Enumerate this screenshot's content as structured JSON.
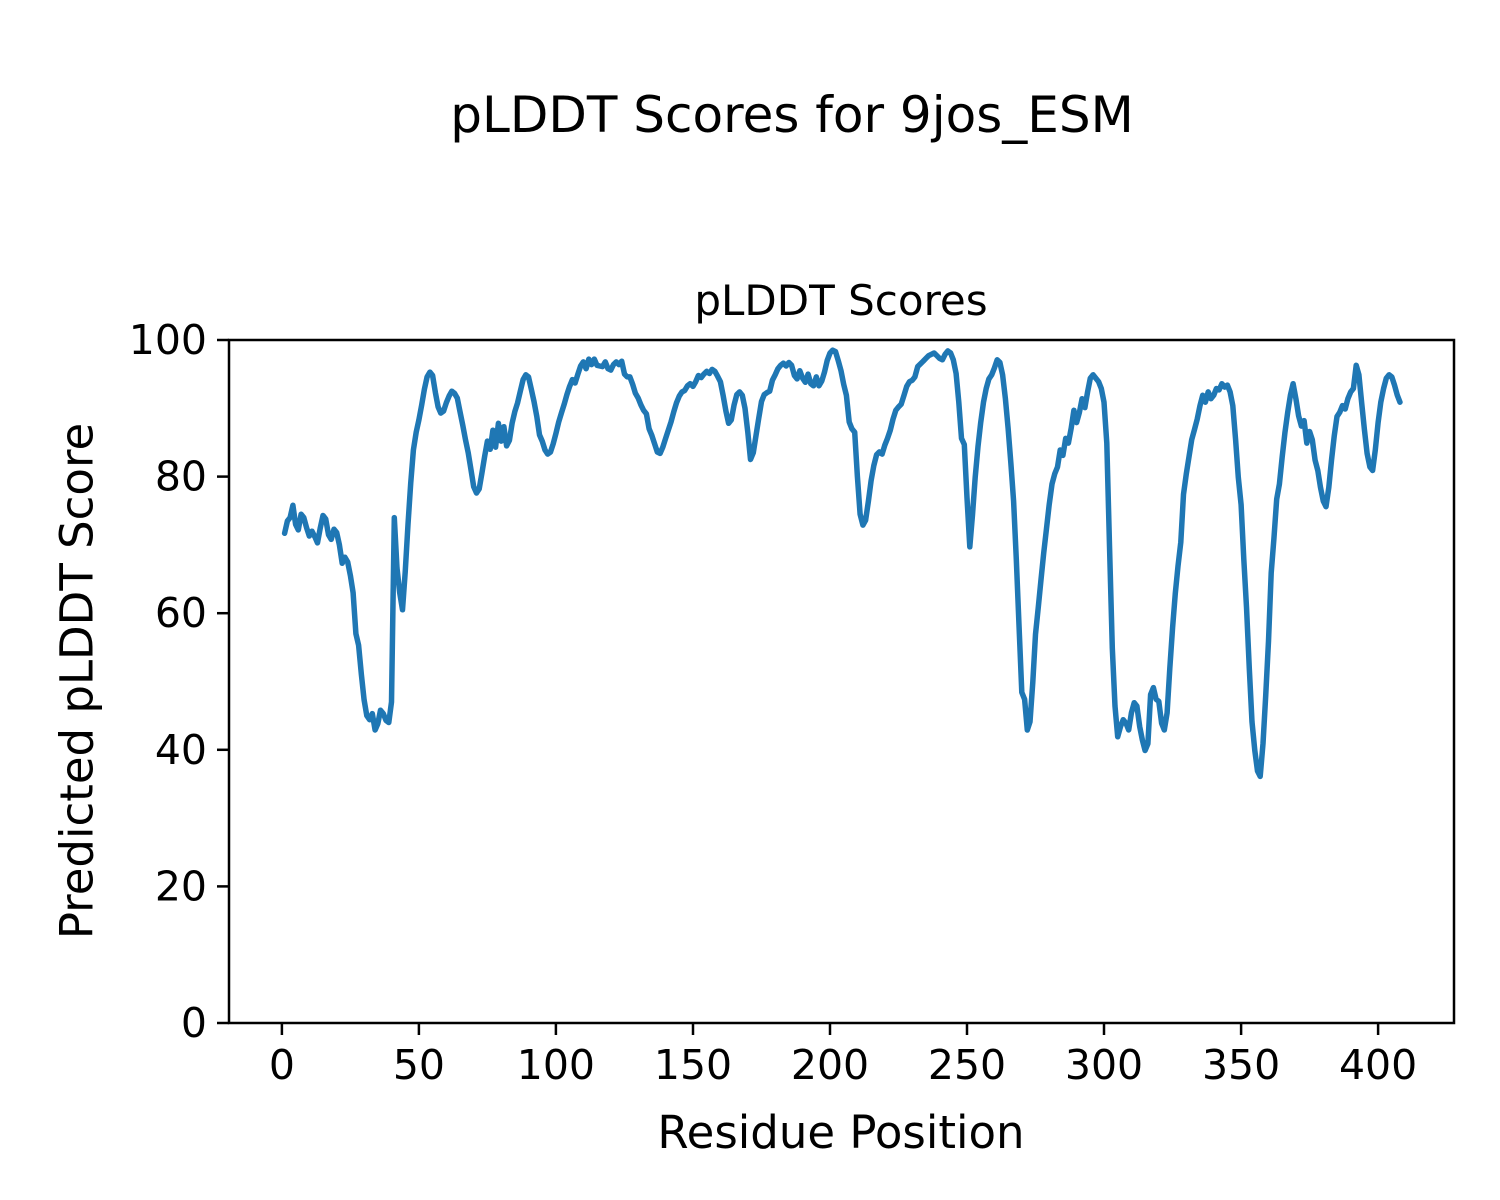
{
  "figure": {
    "suptitle": "pLDDT Scores for 9jos_ESM"
  },
  "chart_data": {
    "type": "line",
    "title": "pLDDT Scores",
    "xlabel": "Residue Position",
    "ylabel": "Predicted pLDDT Score",
    "xlim": [
      -19.3,
      427.7
    ],
    "ylim": [
      0,
      100
    ],
    "xticks": [
      0,
      50,
      100,
      150,
      200,
      250,
      300,
      350,
      400
    ],
    "yticks": [
      0,
      20,
      40,
      60,
      80,
      100
    ],
    "grid": false,
    "legend": null,
    "line_color": "#1f77b4",
    "series": [
      {
        "name": "pLDDT",
        "x_start": 1,
        "x_step": 1,
        "values": [
          71.7,
          73.5,
          74.0,
          75.8,
          73.0,
          72.2,
          74.5,
          74.0,
          72.5,
          71.3,
          72.0,
          71.2,
          70.3,
          72.5,
          74.3,
          73.8,
          71.5,
          70.8,
          72.3,
          71.8,
          70.0,
          67.3,
          68.2,
          67.5,
          65.5,
          63.0,
          57.0,
          55.3,
          51.0,
          47.3,
          45.0,
          44.4,
          45.3,
          42.9,
          43.8,
          45.8,
          45.3,
          44.3,
          44.0,
          47.0,
          74.0,
          66.6,
          63.0,
          60.5,
          66.0,
          73.0,
          79.0,
          83.9,
          86.5,
          88.3,
          90.5,
          92.8,
          94.6,
          95.3,
          94.8,
          92.3,
          90.2,
          89.3,
          89.6,
          90.8,
          91.8,
          92.5,
          92.2,
          91.5,
          89.5,
          87.5,
          85.4,
          83.5,
          81.0,
          78.5,
          77.6,
          78.2,
          80.5,
          83.0,
          85.2,
          84.0,
          86.8,
          84.3,
          87.8,
          85.2,
          87.3,
          84.5,
          85.3,
          87.8,
          89.5,
          90.8,
          92.5,
          94.2,
          94.9,
          94.6,
          92.8,
          91.0,
          88.8,
          86.1,
          85.2,
          83.9,
          83.3,
          83.6,
          84.8,
          86.3,
          88.0,
          89.3,
          90.6,
          92.0,
          93.2,
          94.2,
          93.7,
          95.0,
          96.2,
          96.8,
          95.8,
          97.2,
          96.4,
          97.2,
          96.3,
          96.2,
          96.1,
          96.8,
          95.8,
          95.6,
          96.4,
          96.8,
          96.4,
          96.9,
          95.0,
          94.6,
          94.6,
          93.5,
          92.2,
          91.5,
          90.5,
          89.7,
          89.2,
          87.0,
          86.0,
          84.8,
          83.6,
          83.4,
          84.3,
          85.6,
          86.8,
          88.0,
          89.5,
          90.8,
          91.8,
          92.4,
          92.6,
          93.3,
          93.6,
          93.2,
          93.9,
          94.8,
          94.5,
          95.0,
          95.4,
          95.1,
          95.7,
          95.4,
          94.7,
          93.9,
          91.9,
          89.6,
          87.8,
          88.3,
          90.5,
          92.0,
          92.4,
          91.9,
          90.0,
          86.5,
          82.5,
          83.5,
          86.0,
          88.5,
          91.0,
          92.0,
          92.3,
          92.5,
          94.1,
          94.9,
          95.8,
          96.3,
          96.6,
          96.2,
          96.7,
          96.3,
          94.8,
          94.3,
          95.5,
          94.4,
          93.8,
          95.0,
          93.6,
          93.3,
          94.6,
          93.3,
          94.0,
          95.3,
          97.0,
          98.1,
          98.5,
          98.3,
          97.0,
          95.5,
          93.5,
          91.9,
          88.0,
          87.0,
          86.5,
          80.0,
          74.5,
          72.9,
          73.6,
          76.4,
          79.4,
          81.6,
          83.2,
          83.6,
          83.3,
          84.6,
          85.6,
          86.8,
          88.4,
          89.7,
          90.2,
          90.6,
          91.9,
          93.2,
          93.9,
          94.1,
          94.6,
          96.1,
          96.5,
          96.9,
          97.3,
          97.7,
          97.9,
          98.1,
          97.7,
          97.3,
          97.1,
          97.9,
          98.4,
          98.1,
          97.1,
          95.1,
          90.9,
          85.6,
          84.7,
          76.9,
          69.7,
          74.4,
          79.9,
          84.4,
          87.9,
          90.9,
          92.9,
          94.3,
          94.9,
          95.9,
          97.1,
          96.7,
          94.9,
          91.4,
          87.1,
          81.9,
          76.4,
          67.9,
          57.9,
          48.4,
          47.4,
          42.9,
          44.1,
          49.9,
          56.9,
          60.9,
          64.9,
          68.8,
          72.4,
          75.9,
          78.9,
          80.4,
          81.4,
          83.9,
          83.1,
          85.6,
          84.9,
          87.1,
          89.7,
          87.9,
          89.4,
          91.4,
          90.1,
          92.4,
          94.4,
          94.9,
          94.4,
          93.9,
          92.9,
          90.9,
          84.9,
          69.9,
          54.9,
          46.4,
          41.9,
          43.4,
          44.4,
          43.9,
          42.9,
          45.4,
          46.9,
          46.4,
          43.4,
          41.4,
          39.9,
          40.9,
          48.1,
          49.1,
          47.4,
          47.1,
          43.9,
          42.9,
          45.4,
          51.9,
          57.9,
          62.9,
          66.9,
          70.4,
          77.4,
          80.4,
          82.9,
          85.4,
          86.9,
          88.4,
          90.4,
          91.9,
          90.9,
          92.4,
          91.4,
          91.9,
          92.9,
          92.7,
          93.6,
          93.1,
          93.4,
          92.4,
          90.4,
          85.4,
          79.9,
          75.9,
          67.9,
          60.9,
          51.9,
          44.1,
          39.9,
          36.9,
          36.1,
          40.9,
          47.9,
          55.9,
          65.9,
          70.9,
          76.7,
          78.9,
          82.9,
          86.4,
          89.4,
          91.9,
          93.6,
          91.4,
          88.9,
          87.4,
          88.2,
          84.9,
          86.6,
          85.4,
          82.4,
          80.9,
          78.4,
          76.4,
          75.6,
          78.4,
          82.4,
          85.9,
          88.8,
          89.4,
          90.4,
          89.9,
          91.4,
          92.4,
          92.9,
          96.3,
          94.9,
          90.9,
          86.9,
          83.4,
          81.4,
          80.9,
          83.9,
          87.9,
          90.9,
          92.9,
          94.4,
          94.9,
          94.6,
          93.4,
          91.9,
          90.9
        ]
      }
    ]
  }
}
